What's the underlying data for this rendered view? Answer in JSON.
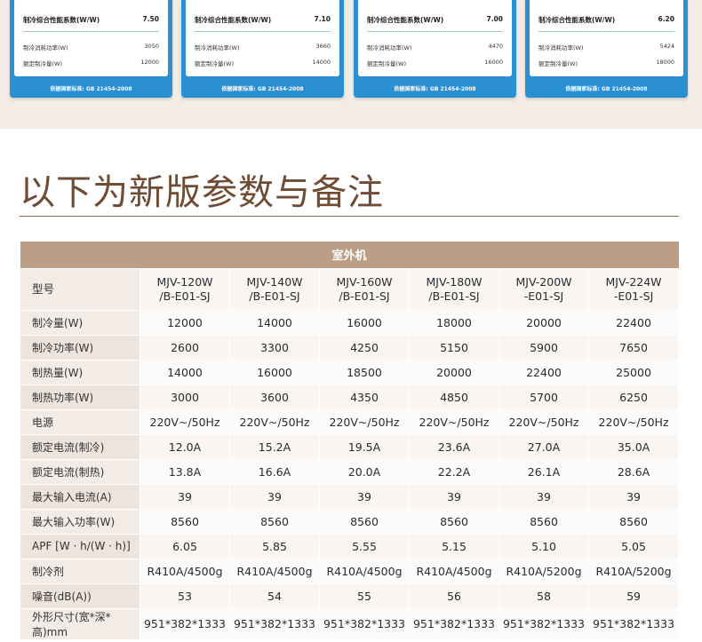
{
  "energy_cards": [
    {
      "title": "制冷综合性能系数(W/W)",
      "value": "7.50",
      "rows": [
        {
          "label": "制冷消耗功率(W)",
          "value": "3050"
        },
        {
          "label": "额定制冷量(W)",
          "value": "12000"
        }
      ],
      "footer": "依据国家标准: GB 21454-2008"
    },
    {
      "title": "制冷综合性能系数(W/W)",
      "value": "7.10",
      "rows": [
        {
          "label": "制冷消耗功率(W)",
          "value": "3660"
        },
        {
          "label": "额定制冷量(W)",
          "value": "14000"
        }
      ],
      "footer": "依据国家标准: GB 21454-2008"
    },
    {
      "title": "制冷综合性能系数(W/W)",
      "value": "7.00",
      "rows": [
        {
          "label": "制冷消耗功率(W)",
          "value": "4470"
        },
        {
          "label": "额定制冷量(W)",
          "value": "16000"
        }
      ],
      "footer": "依据国家标准: GB 21454-2008"
    },
    {
      "title": "制冷综合性能系数(W/W)",
      "value": "6.20",
      "rows": [
        {
          "label": "制冷消耗功率(W)",
          "value": "5424"
        },
        {
          "label": "额定制冷量(W)",
          "value": "18000"
        }
      ],
      "footer": "依据国家标准: GB 21454-2008"
    }
  ],
  "heading": "以下为新版参数与备注",
  "table": {
    "group_header": "室外机",
    "model_label": "型号",
    "models": [
      {
        "line1": "MJV-120W",
        "line2": "/B-E01-SJ"
      },
      {
        "line1": "MJV-140W",
        "line2": "/B-E01-SJ"
      },
      {
        "line1": "MJV-160W",
        "line2": "/B-E01-SJ"
      },
      {
        "line1": "MJV-180W",
        "line2": "/B-E01-SJ"
      },
      {
        "line1": "MJV-200W",
        "line2": "-E01-SJ"
      },
      {
        "line1": "MJV-224W",
        "line2": "-E01-SJ"
      }
    ],
    "rows": [
      {
        "label": "制冷量(W)",
        "values": [
          "12000",
          "14000",
          "16000",
          "18000",
          "20000",
          "22400"
        ]
      },
      {
        "label": "制冷功率(W)",
        "values": [
          "2600",
          "3300",
          "4250",
          "5150",
          "5900",
          "7650"
        ]
      },
      {
        "label": "制热量(W)",
        "values": [
          "14000",
          "16000",
          "18500",
          "20000",
          "22400",
          "25000"
        ]
      },
      {
        "label": "制热功率(W)",
        "values": [
          "3000",
          "3600",
          "4350",
          "4850",
          "5700",
          "6250"
        ]
      },
      {
        "label": "电源",
        "values": [
          "220V~/50Hz",
          "220V~/50Hz",
          "220V~/50Hz",
          "220V~/50Hz",
          "220V~/50Hz",
          "220V~/50Hz"
        ]
      },
      {
        "label": "额定电流(制冷)",
        "values": [
          "12.0A",
          "15.2A",
          "19.5A",
          "23.6A",
          "27.0A",
          "35.0A"
        ]
      },
      {
        "label": "额定电流(制热)",
        "values": [
          "13.8A",
          "16.6A",
          "20.0A",
          "22.2A",
          "26.1A",
          "28.6A"
        ]
      },
      {
        "label": "最大输入电流(A)",
        "values": [
          "39",
          "39",
          "39",
          "39",
          "39",
          "39"
        ]
      },
      {
        "label": "最大输入功率(W)",
        "values": [
          "8560",
          "8560",
          "8560",
          "8560",
          "8560",
          "8560"
        ]
      },
      {
        "label": "APF [W · h/(W · h)]",
        "values": [
          "6.05",
          "5.85",
          "5.55",
          "5.15",
          "5.10",
          "5.05"
        ]
      },
      {
        "label": "制冷剂",
        "values": [
          "R410A/4500g",
          "R410A/4500g",
          "R410A/4500g",
          "R410A/4500g",
          "R410A/5200g",
          "R410A/5200g"
        ]
      },
      {
        "label": "噪音(dB(A))",
        "values": [
          "53",
          "54",
          "55",
          "56",
          "58",
          "59"
        ]
      },
      {
        "label": "外形尺寸(宽*深*高)mm",
        "values": [
          "951*382*1333",
          "951*382*1333",
          "951*382*1333",
          "951*382*1333",
          "951*382*1333",
          "951*382*1333"
        ]
      }
    ]
  }
}
